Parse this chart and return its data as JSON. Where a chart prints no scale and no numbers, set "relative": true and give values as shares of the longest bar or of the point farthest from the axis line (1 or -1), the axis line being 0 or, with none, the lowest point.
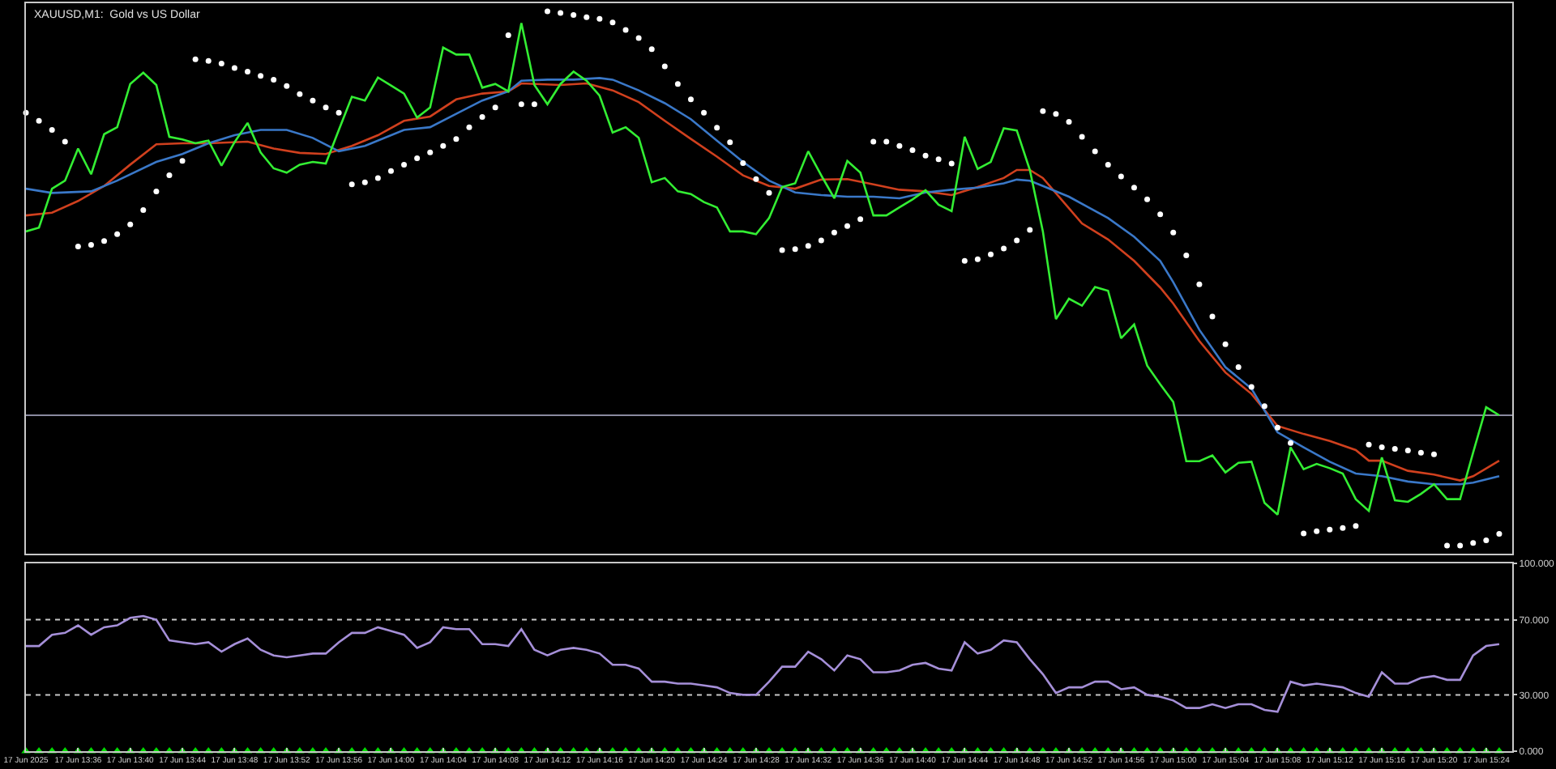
{
  "chart_data": [
    {
      "type": "line",
      "title": "XAUUSD,M1:  Gold vs US Dollar",
      "relative": true,
      "grid": false,
      "xlim": [
        "2025-06-17T13:32",
        "2025-06-17T15:26"
      ],
      "x": [
        "2025-06-17T13:32",
        "2025-06-17T13:33",
        "2025-06-17T13:34",
        "2025-06-17T13:35",
        "2025-06-17T13:36",
        "2025-06-17T13:37",
        "2025-06-17T13:38",
        "2025-06-17T13:39",
        "2025-06-17T13:40",
        "2025-06-17T13:41",
        "2025-06-17T13:42",
        "2025-06-17T13:43",
        "2025-06-17T13:44",
        "2025-06-17T13:45",
        "2025-06-17T13:46",
        "2025-06-17T13:47",
        "2025-06-17T13:48",
        "2025-06-17T13:49",
        "2025-06-17T13:50",
        "2025-06-17T13:51",
        "2025-06-17T13:52",
        "2025-06-17T13:53",
        "2025-06-17T13:54",
        "2025-06-17T13:55",
        "2025-06-17T13:56",
        "2025-06-17T13:57",
        "2025-06-17T13:58",
        "2025-06-17T13:59",
        "2025-06-17T14:00",
        "2025-06-17T14:01",
        "2025-06-17T14:02",
        "2025-06-17T14:03",
        "2025-06-17T14:04",
        "2025-06-17T14:05",
        "2025-06-17T14:06",
        "2025-06-17T14:07",
        "2025-06-17T14:08",
        "2025-06-17T14:09",
        "2025-06-17T14:10",
        "2025-06-17T14:11",
        "2025-06-17T14:12",
        "2025-06-17T14:13",
        "2025-06-17T14:14",
        "2025-06-17T14:15",
        "2025-06-17T14:16",
        "2025-06-17T14:17",
        "2025-06-17T14:18",
        "2025-06-17T14:19",
        "2025-06-17T14:20",
        "2025-06-17T14:21",
        "2025-06-17T14:22",
        "2025-06-17T14:23",
        "2025-06-17T14:24",
        "2025-06-17T14:25",
        "2025-06-17T14:26",
        "2025-06-17T14:27",
        "2025-06-17T14:28",
        "2025-06-17T14:29",
        "2025-06-17T14:30",
        "2025-06-17T14:31",
        "2025-06-17T14:32",
        "2025-06-17T14:33",
        "2025-06-17T14:34",
        "2025-06-17T14:35",
        "2025-06-17T14:36",
        "2025-06-17T14:37",
        "2025-06-17T14:38",
        "2025-06-17T14:39",
        "2025-06-17T14:40",
        "2025-06-17T14:41",
        "2025-06-17T14:42",
        "2025-06-17T14:43",
        "2025-06-17T14:44",
        "2025-06-17T14:45",
        "2025-06-17T14:46",
        "2025-06-17T14:47",
        "2025-06-17T14:48",
        "2025-06-17T14:49",
        "2025-06-17T14:50",
        "2025-06-17T14:51",
        "2025-06-17T14:52",
        "2025-06-17T14:53",
        "2025-06-17T14:54",
        "2025-06-17T14:55",
        "2025-06-17T14:56",
        "2025-06-17T14:57",
        "2025-06-17T14:58",
        "2025-06-17T14:59",
        "2025-06-17T15:00",
        "2025-06-17T15:01",
        "2025-06-17T15:02",
        "2025-06-17T15:03",
        "2025-06-17T15:04",
        "2025-06-17T15:05",
        "2025-06-17T15:06",
        "2025-06-17T15:07",
        "2025-06-17T15:08",
        "2025-06-17T15:09",
        "2025-06-17T15:10",
        "2025-06-17T15:11",
        "2025-06-17T15:12",
        "2025-06-17T15:13",
        "2025-06-17T15:14",
        "2025-06-17T15:15",
        "2025-06-17T15:16",
        "2025-06-17T15:17",
        "2025-06-17T15:18",
        "2025-06-17T15:19",
        "2025-06-17T15:20",
        "2025-06-17T15:21",
        "2025-06-17T15:22",
        "2025-06-17T15:23",
        "2025-06-17T15:24",
        "2025-06-17T15:25"
      ],
      "ref_lines": [
        {
          "axis": "y",
          "value": 0.244,
          "color": "#8a8aa0"
        }
      ],
      "series": [
        {
          "color": "#d0401e",
          "x": [
            "2025-06-17T13:32",
            "2025-06-17T13:34",
            "2025-06-17T13:36",
            "2025-06-17T13:38",
            "2025-06-17T13:40",
            "2025-06-17T13:42",
            "2025-06-17T13:44",
            "2025-06-17T13:46",
            "2025-06-17T13:49",
            "2025-06-17T13:51",
            "2025-06-17T13:53",
            "2025-06-17T13:55",
            "2025-06-17T13:57",
            "2025-06-17T13:59",
            "2025-06-17T14:01",
            "2025-06-17T14:03",
            "2025-06-17T14:05",
            "2025-06-17T14:07",
            "2025-06-17T14:09",
            "2025-06-17T14:10",
            "2025-06-17T14:13",
            "2025-06-17T14:15",
            "2025-06-17T14:17",
            "2025-06-17T14:19",
            "2025-06-17T14:21",
            "2025-06-17T14:23",
            "2025-06-17T14:25",
            "2025-06-17T14:27",
            "2025-06-17T14:29",
            "2025-06-17T14:31",
            "2025-06-17T14:33",
            "2025-06-17T14:35",
            "2025-06-17T14:37",
            "2025-06-17T14:39",
            "2025-06-17T14:41",
            "2025-06-17T14:43",
            "2025-06-17T14:45",
            "2025-06-17T14:47",
            "2025-06-17T14:48",
            "2025-06-17T14:49",
            "2025-06-17T14:50",
            "2025-06-17T14:53",
            "2025-06-17T14:55",
            "2025-06-17T14:57",
            "2025-06-17T14:59",
            "2025-06-17T15:00",
            "2025-06-17T15:02",
            "2025-06-17T15:04",
            "2025-06-17T15:06",
            "2025-06-17T15:08",
            "2025-06-17T15:10",
            "2025-06-17T15:12",
            "2025-06-17T15:14",
            "2025-06-17T15:15",
            "2025-06-17T15:16",
            "2025-06-17T15:18",
            "2025-06-17T15:20",
            "2025-06-17T15:22",
            "2025-06-17T15:23",
            "2025-06-17T15:25"
          ],
          "values": [
            0.618,
            0.623,
            0.645,
            0.673,
            0.713,
            0.751,
            0.753,
            0.753,
            0.756,
            0.743,
            0.735,
            0.733,
            0.748,
            0.768,
            0.795,
            0.803,
            0.835,
            0.846,
            0.85,
            0.865,
            0.862,
            0.865,
            0.852,
            0.83,
            0.795,
            0.761,
            0.728,
            0.693,
            0.673,
            0.668,
            0.685,
            0.686,
            0.676,
            0.666,
            0.663,
            0.656,
            0.671,
            0.688,
            0.703,
            0.703,
            0.688,
            0.603,
            0.573,
            0.533,
            0.483,
            0.453,
            0.383,
            0.324,
            0.284,
            0.224,
            0.209,
            0.196,
            0.179,
            0.159,
            0.159,
            0.14,
            0.133,
            0.122,
            0.13,
            0.159
          ]
        },
        {
          "color": "#3a78c8",
          "x": [
            "2025-06-17T13:32",
            "2025-06-17T13:34",
            "2025-06-17T13:37",
            "2025-06-17T13:39",
            "2025-06-17T13:42",
            "2025-06-17T13:44",
            "2025-06-17T13:46",
            "2025-06-17T13:48",
            "2025-06-17T13:50",
            "2025-06-17T13:52",
            "2025-06-17T13:54",
            "2025-06-17T13:56",
            "2025-06-17T13:58",
            "2025-06-17T14:01",
            "2025-06-17T14:03",
            "2025-06-17T14:05",
            "2025-06-17T14:07",
            "2025-06-17T14:09",
            "2025-06-17T14:10",
            "2025-06-17T14:12",
            "2025-06-17T14:14",
            "2025-06-17T14:16",
            "2025-06-17T14:17",
            "2025-06-17T14:19",
            "2025-06-17T14:21",
            "2025-06-17T14:23",
            "2025-06-17T14:25",
            "2025-06-17T14:27",
            "2025-06-17T14:29",
            "2025-06-17T14:31",
            "2025-06-17T14:33",
            "2025-06-17T14:35",
            "2025-06-17T14:37",
            "2025-06-17T14:39",
            "2025-06-17T14:41",
            "2025-06-17T14:43",
            "2025-06-17T14:45",
            "2025-06-17T14:47",
            "2025-06-17T14:48",
            "2025-06-17T14:49",
            "2025-06-17T14:50",
            "2025-06-17T14:52",
            "2025-06-17T14:55",
            "2025-06-17T14:57",
            "2025-06-17T14:59",
            "2025-06-17T15:00",
            "2025-06-17T15:02",
            "2025-06-17T15:04",
            "2025-06-17T15:06",
            "2025-06-17T15:08",
            "2025-06-17T15:10",
            "2025-06-17T15:12",
            "2025-06-17T15:14",
            "2025-06-17T15:16",
            "2025-06-17T15:18",
            "2025-06-17T15:20",
            "2025-06-17T15:22",
            "2025-06-17T15:23",
            "2025-06-17T15:25"
          ],
          "values": [
            0.668,
            0.66,
            0.663,
            0.683,
            0.718,
            0.733,
            0.753,
            0.768,
            0.778,
            0.778,
            0.763,
            0.738,
            0.748,
            0.778,
            0.783,
            0.808,
            0.833,
            0.85,
            0.87,
            0.872,
            0.872,
            0.875,
            0.872,
            0.852,
            0.828,
            0.798,
            0.758,
            0.718,
            0.683,
            0.661,
            0.656,
            0.653,
            0.653,
            0.65,
            0.661,
            0.666,
            0.67,
            0.678,
            0.685,
            0.683,
            0.673,
            0.653,
            0.613,
            0.578,
            0.533,
            0.493,
            0.404,
            0.334,
            0.294,
            0.212,
            0.184,
            0.157,
            0.135,
            0.13,
            0.12,
            0.115,
            0.115,
            0.118,
            0.13
          ]
        },
        {
          "color": "#33ee33",
          "values": [
            0.588,
            0.595,
            0.668,
            0.683,
            0.743,
            0.695,
            0.77,
            0.783,
            0.864,
            0.885,
            0.862,
            0.765,
            0.76,
            0.753,
            0.758,
            0.711,
            0.755,
            0.791,
            0.736,
            0.706,
            0.698,
            0.713,
            0.718,
            0.715,
            0.778,
            0.84,
            0.833,
            0.876,
            0.861,
            0.846,
            0.801,
            0.82,
            0.932,
            0.919,
            0.919,
            0.857,
            0.864,
            0.85,
            0.978,
            0.862,
            0.826,
            0.864,
            0.887,
            0.87,
            0.842,
            0.773,
            0.783,
            0.763,
            0.68,
            0.688,
            0.663,
            0.658,
            0.643,
            0.633,
            0.588,
            0.588,
            0.583,
            0.613,
            0.671,
            0.678,
            0.738,
            0.693,
            0.65,
            0.72,
            0.698,
            0.618,
            0.618,
            0.633,
            0.648,
            0.665,
            0.638,
            0.626,
            0.765,
            0.705,
            0.718,
            0.781,
            0.777,
            0.703,
            0.588,
            0.424,
            0.462,
            0.449,
            0.484,
            0.477,
            0.388,
            0.414,
            0.337,
            0.302,
            0.269,
            0.158,
            0.158,
            0.169,
            0.137,
            0.155,
            0.157,
            0.08,
            0.058,
            0.184,
            0.143,
            0.153,
            0.145,
            0.135,
            0.087,
            0.065,
            0.165,
            0.085,
            0.082,
            0.097,
            0.115,
            0.087,
            0.087,
            0.174,
            0.259,
            0.244
          ]
        },
        {
          "type": "scatter",
          "marker": "circle",
          "color": "#ffffff",
          "values": [
            0.81,
            0.795,
            0.778,
            0.756,
            0.56,
            0.563,
            0.57,
            0.583,
            0.601,
            0.628,
            0.663,
            0.693,
            0.72,
            0.91,
            0.907,
            0.902,
            0.894,
            0.887,
            0.879,
            0.872,
            0.86,
            0.845,
            0.833,
            0.82,
            0.81,
            0.676,
            0.68,
            0.688,
            0.701,
            0.713,
            0.725,
            0.736,
            0.748,
            0.761,
            0.783,
            0.802,
            0.82,
            0.955,
            0.826,
            0.826,
            1.0,
            0.997,
            0.993,
            0.989,
            0.986,
            0.979,
            0.965,
            0.95,
            0.929,
            0.897,
            0.864,
            0.835,
            0.81,
            0.782,
            0.755,
            0.716,
            0.686,
            0.66,
            0.553,
            0.555,
            0.561,
            0.571,
            0.586,
            0.598,
            0.611,
            0.756,
            0.756,
            0.748,
            0.74,
            0.73,
            0.723,
            0.715,
            0.533,
            0.536,
            0.545,
            0.556,
            0.571,
            0.591,
            0.813,
            0.808,
            0.793,
            0.765,
            0.738,
            0.713,
            0.691,
            0.67,
            0.648,
            0.62,
            0.586,
            0.543,
            0.489,
            0.429,
            0.377,
            0.334,
            0.297,
            0.261,
            0.221,
            0.192,
            0.023,
            0.027,
            0.03,
            0.033,
            0.037,
            0.189,
            0.184,
            0.181,
            0.178,
            0.174,
            0.171,
            0.0,
            0.0,
            0.005,
            0.01,
            0.022
          ]
        }
      ]
    },
    {
      "type": "line",
      "grid": false,
      "xlim": [
        "2025-06-17T13:32",
        "2025-06-17T15:26"
      ],
      "xticks": [
        {
          "value": "2025-06-17T13:32",
          "label": "17 Jun 2025"
        },
        {
          "value": "2025-06-17T13:36",
          "label": "17 Jun 13:36"
        },
        {
          "value": "2025-06-17T13:40",
          "label": "17 Jun 13:40"
        },
        {
          "value": "2025-06-17T13:44",
          "label": "17 Jun 13:44"
        },
        {
          "value": "2025-06-17T13:48",
          "label": "17 Jun 13:48"
        },
        {
          "value": "2025-06-17T13:52",
          "label": "17 Jun 13:52"
        },
        {
          "value": "2025-06-17T13:56",
          "label": "17 Jun 13:56"
        },
        {
          "value": "2025-06-17T14:00",
          "label": "17 Jun 14:00"
        },
        {
          "value": "2025-06-17T14:04",
          "label": "17 Jun 14:04"
        },
        {
          "value": "2025-06-17T14:08",
          "label": "17 Jun 14:08"
        },
        {
          "value": "2025-06-17T14:12",
          "label": "17 Jun 14:12"
        },
        {
          "value": "2025-06-17T14:16",
          "label": "17 Jun 14:16"
        },
        {
          "value": "2025-06-17T14:20",
          "label": "17 Jun 14:20"
        },
        {
          "value": "2025-06-17T14:24",
          "label": "17 Jun 14:24"
        },
        {
          "value": "2025-06-17T14:28",
          "label": "17 Jun 14:28"
        },
        {
          "value": "2025-06-17T14:32",
          "label": "17 Jun 14:32"
        },
        {
          "value": "2025-06-17T14:36",
          "label": "17 Jun 14:36"
        },
        {
          "value": "2025-06-17T14:40",
          "label": "17 Jun 14:40"
        },
        {
          "value": "2025-06-17T14:44",
          "label": "17 Jun 14:44"
        },
        {
          "value": "2025-06-17T14:48",
          "label": "17 Jun 14:48"
        },
        {
          "value": "2025-06-17T14:52",
          "label": "17 Jun 14:52"
        },
        {
          "value": "2025-06-17T14:56",
          "label": "17 Jun 14:56"
        },
        {
          "value": "2025-06-17T15:00",
          "label": "17 Jun 15:00"
        },
        {
          "value": "2025-06-17T15:04",
          "label": "17 Jun 15:04"
        },
        {
          "value": "2025-06-17T15:08",
          "label": "17 Jun 15:08"
        },
        {
          "value": "2025-06-17T15:12",
          "label": "17 Jun 15:12"
        },
        {
          "value": "2025-06-17T15:16",
          "label": "17 Jun 15:16"
        },
        {
          "value": "2025-06-17T15:20",
          "label": "17 Jun 15:20"
        },
        {
          "value": "2025-06-17T15:24",
          "label": "17 Jun 15:24"
        }
      ],
      "ylim": [
        0,
        100
      ],
      "yticks": [
        {
          "value": 0,
          "label": "0.000"
        },
        {
          "value": 30,
          "label": "30.000"
        },
        {
          "value": 70,
          "label": "70.000"
        },
        {
          "value": 100,
          "label": "100.000"
        }
      ],
      "x": [
        "2025-06-17T13:32",
        "2025-06-17T13:33",
        "2025-06-17T13:34",
        "2025-06-17T13:35",
        "2025-06-17T13:36",
        "2025-06-17T13:37",
        "2025-06-17T13:38",
        "2025-06-17T13:39",
        "2025-06-17T13:40",
        "2025-06-17T13:41",
        "2025-06-17T13:42",
        "2025-06-17T13:43",
        "2025-06-17T13:44",
        "2025-06-17T13:45",
        "2025-06-17T13:46",
        "2025-06-17T13:47",
        "2025-06-17T13:48",
        "2025-06-17T13:49",
        "2025-06-17T13:50",
        "2025-06-17T13:51",
        "2025-06-17T13:52",
        "2025-06-17T13:53",
        "2025-06-17T13:54",
        "2025-06-17T13:55",
        "2025-06-17T13:56",
        "2025-06-17T13:57",
        "2025-06-17T13:58",
        "2025-06-17T13:59",
        "2025-06-17T14:00",
        "2025-06-17T14:01",
        "2025-06-17T14:02",
        "2025-06-17T14:03",
        "2025-06-17T14:04",
        "2025-06-17T14:05",
        "2025-06-17T14:06",
        "2025-06-17T14:07",
        "2025-06-17T14:08",
        "2025-06-17T14:09",
        "2025-06-17T14:10",
        "2025-06-17T14:11",
        "2025-06-17T14:12",
        "2025-06-17T14:13",
        "2025-06-17T14:14",
        "2025-06-17T14:15",
        "2025-06-17T14:16",
        "2025-06-17T14:17",
        "2025-06-17T14:18",
        "2025-06-17T14:19",
        "2025-06-17T14:20",
        "2025-06-17T14:21",
        "2025-06-17T14:22",
        "2025-06-17T14:23",
        "2025-06-17T14:24",
        "2025-06-17T14:25",
        "2025-06-17T14:26",
        "2025-06-17T14:27",
        "2025-06-17T14:28",
        "2025-06-17T14:29",
        "2025-06-17T14:30",
        "2025-06-17T14:31",
        "2025-06-17T14:32",
        "2025-06-17T14:33",
        "2025-06-17T14:34",
        "2025-06-17T14:35",
        "2025-06-17T14:36",
        "2025-06-17T14:37",
        "2025-06-17T14:38",
        "2025-06-17T14:39",
        "2025-06-17T14:40",
        "2025-06-17T14:41",
        "2025-06-17T14:42",
        "2025-06-17T14:43",
        "2025-06-17T14:44",
        "2025-06-17T14:45",
        "2025-06-17T14:46",
        "2025-06-17T14:47",
        "2025-06-17T14:48",
        "2025-06-17T14:49",
        "2025-06-17T14:50",
        "2025-06-17T14:51",
        "2025-06-17T14:52",
        "2025-06-17T14:53",
        "2025-06-17T14:54",
        "2025-06-17T14:55",
        "2025-06-17T14:56",
        "2025-06-17T14:57",
        "2025-06-17T14:58",
        "2025-06-17T14:59",
        "2025-06-17T15:00",
        "2025-06-17T15:01",
        "2025-06-17T15:02",
        "2025-06-17T15:03",
        "2025-06-17T15:04",
        "2025-06-17T15:05",
        "2025-06-17T15:06",
        "2025-06-17T15:07",
        "2025-06-17T15:08",
        "2025-06-17T15:09",
        "2025-06-17T15:10",
        "2025-06-17T15:11",
        "2025-06-17T15:12",
        "2025-06-17T15:13",
        "2025-06-17T15:14",
        "2025-06-17T15:15",
        "2025-06-17T15:16",
        "2025-06-17T15:17",
        "2025-06-17T15:18",
        "2025-06-17T15:19",
        "2025-06-17T15:20",
        "2025-06-17T15:21",
        "2025-06-17T15:22",
        "2025-06-17T15:23",
        "2025-06-17T15:24",
        "2025-06-17T15:25"
      ],
      "ref_lines": [
        {
          "axis": "y",
          "value": 70,
          "color": "#c8c8c8",
          "line_style": "dotted"
        },
        {
          "axis": "y",
          "value": 30,
          "color": "#c8c8c8",
          "line_style": "dotted"
        }
      ],
      "series": [
        {
          "color": "#a58fd8",
          "values": [
            56,
            56,
            62,
            63,
            67,
            62,
            66,
            67,
            71,
            72,
            70,
            59,
            58,
            57,
            58,
            53,
            57,
            60,
            54,
            51,
            50,
            51,
            52,
            52,
            58,
            63,
            63,
            66,
            64,
            62,
            55,
            58,
            66,
            65,
            65,
            57,
            57,
            56,
            65,
            54,
            51,
            54,
            55,
            54,
            52,
            46,
            46,
            44,
            37,
            37,
            36,
            36,
            35,
            34,
            31,
            30,
            30,
            37,
            45,
            45,
            53,
            49,
            43,
            51,
            49,
            42,
            42,
            43,
            46,
            47,
            44,
            43,
            58,
            52,
            54,
            59,
            58,
            49,
            41,
            31,
            34,
            34,
            37,
            37,
            33,
            34,
            30,
            29,
            27,
            23,
            23,
            25,
            23,
            25,
            25,
            22,
            21,
            37,
            35,
            36,
            35,
            34,
            31,
            29,
            42,
            36,
            36,
            39,
            40,
            38,
            38,
            51,
            56,
            57
          ]
        },
        {
          "type": "scatter",
          "marker": "triangle",
          "color": "#00dd00",
          "values": [
            0,
            0,
            0,
            0,
            0,
            0,
            0,
            0,
            0,
            0,
            0,
            0,
            0,
            0,
            0,
            0,
            0,
            0,
            0,
            0,
            0,
            0,
            0,
            0,
            0,
            0,
            0,
            0,
            0,
            0,
            0,
            0,
            0,
            0,
            0,
            0,
            0,
            0,
            0,
            0,
            0,
            0,
            0,
            0,
            0,
            0,
            0,
            0,
            0,
            0,
            0,
            0,
            0,
            0,
            0,
            0,
            0,
            0,
            0,
            0,
            0,
            0,
            0,
            0,
            0,
            0,
            0,
            0,
            0,
            0,
            0,
            0,
            0,
            0,
            0,
            0,
            0,
            0,
            0,
            0,
            0,
            0,
            0,
            0,
            0,
            0,
            0,
            0,
            0,
            0,
            0,
            0,
            0,
            0,
            0,
            0,
            0,
            0,
            0,
            0,
            0,
            0,
            0,
            0,
            0,
            0,
            0,
            0,
            0,
            0,
            0,
            0,
            0,
            0
          ]
        }
      ]
    }
  ]
}
